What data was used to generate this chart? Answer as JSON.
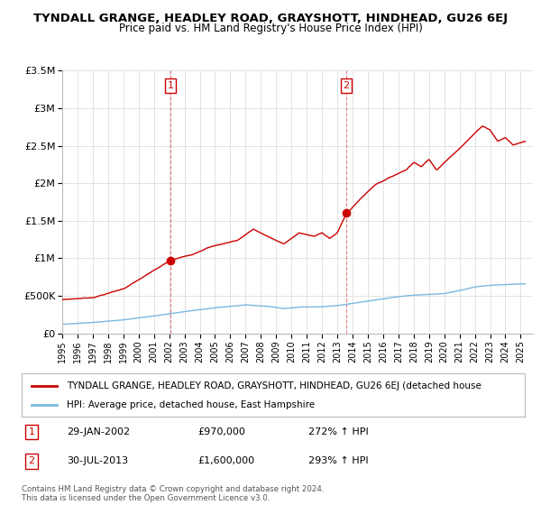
{
  "title": "TYNDALL GRANGE, HEADLEY ROAD, GRAYSHOTT, HINDHEAD, GU26 6EJ",
  "subtitle": "Price paid vs. HM Land Registry's House Price Index (HPI)",
  "ylabel_ticks": [
    "£0",
    "£500K",
    "£1M",
    "£1.5M",
    "£2M",
    "£2.5M",
    "£3M",
    "£3.5M"
  ],
  "ylabel_values": [
    0,
    500000,
    1000000,
    1500000,
    2000000,
    2500000,
    3000000,
    3500000
  ],
  "ylim": [
    0,
    3500000
  ],
  "hpi_color": "#7ab8e0",
  "property_color": "#cc0000",
  "sale1_date_num": 2002.08,
  "sale1_price": 970000,
  "sale2_date_num": 2013.58,
  "sale2_price": 1600000,
  "legend_property": "TYNDALL GRANGE, HEADLEY ROAD, GRAYSHOTT, HINDHEAD, GU26 6EJ (detached house",
  "legend_hpi": "HPI: Average price, detached house, East Hampshire",
  "table_data": [
    {
      "num": "1",
      "date": "29-JAN-2002",
      "price": "£970,000",
      "hpi": "272% ↑ HPI"
    },
    {
      "num": "2",
      "date": "30-JUL-2013",
      "price": "£1,600,000",
      "hpi": "293% ↑ HPI"
    }
  ],
  "copyright": "Contains HM Land Registry data © Crown copyright and database right 2024.\nThis data is licensed under the Open Government Licence v3.0.",
  "xlim_start": 1995.0,
  "xlim_end": 2025.8,
  "prop_keypoints": [
    [
      1995.0,
      450000
    ],
    [
      1997.0,
      480000
    ],
    [
      1999.0,
      600000
    ],
    [
      2000.5,
      780000
    ],
    [
      2002.08,
      970000
    ],
    [
      2003.5,
      1050000
    ],
    [
      2004.5,
      1150000
    ],
    [
      2005.5,
      1200000
    ],
    [
      2006.5,
      1250000
    ],
    [
      2007.5,
      1400000
    ],
    [
      2008.5,
      1300000
    ],
    [
      2009.5,
      1200000
    ],
    [
      2010.5,
      1350000
    ],
    [
      2011.5,
      1300000
    ],
    [
      2012.0,
      1350000
    ],
    [
      2012.5,
      1280000
    ],
    [
      2013.0,
      1350000
    ],
    [
      2013.58,
      1600000
    ],
    [
      2014.5,
      1800000
    ],
    [
      2015.5,
      2000000
    ],
    [
      2016.5,
      2100000
    ],
    [
      2017.5,
      2200000
    ],
    [
      2018.0,
      2300000
    ],
    [
      2018.5,
      2250000
    ],
    [
      2019.0,
      2350000
    ],
    [
      2019.5,
      2200000
    ],
    [
      2020.0,
      2300000
    ],
    [
      2020.5,
      2400000
    ],
    [
      2021.0,
      2500000
    ],
    [
      2021.5,
      2600000
    ],
    [
      2022.0,
      2700000
    ],
    [
      2022.5,
      2800000
    ],
    [
      2023.0,
      2750000
    ],
    [
      2023.5,
      2600000
    ],
    [
      2024.0,
      2650000
    ],
    [
      2024.5,
      2550000
    ],
    [
      2025.3,
      2600000
    ]
  ],
  "hpi_keypoints": [
    [
      1995.0,
      120000
    ],
    [
      1997.0,
      145000
    ],
    [
      1999.0,
      180000
    ],
    [
      2001.0,
      230000
    ],
    [
      2003.0,
      290000
    ],
    [
      2005.0,
      340000
    ],
    [
      2007.0,
      380000
    ],
    [
      2008.5,
      360000
    ],
    [
      2009.5,
      330000
    ],
    [
      2010.5,
      350000
    ],
    [
      2012.0,
      355000
    ],
    [
      2013.0,
      370000
    ],
    [
      2014.0,
      400000
    ],
    [
      2015.0,
      430000
    ],
    [
      2016.0,
      460000
    ],
    [
      2017.0,
      490000
    ],
    [
      2018.0,
      510000
    ],
    [
      2019.0,
      520000
    ],
    [
      2020.0,
      530000
    ],
    [
      2021.0,
      570000
    ],
    [
      2022.0,
      620000
    ],
    [
      2023.0,
      640000
    ],
    [
      2024.0,
      650000
    ],
    [
      2025.3,
      660000
    ]
  ]
}
